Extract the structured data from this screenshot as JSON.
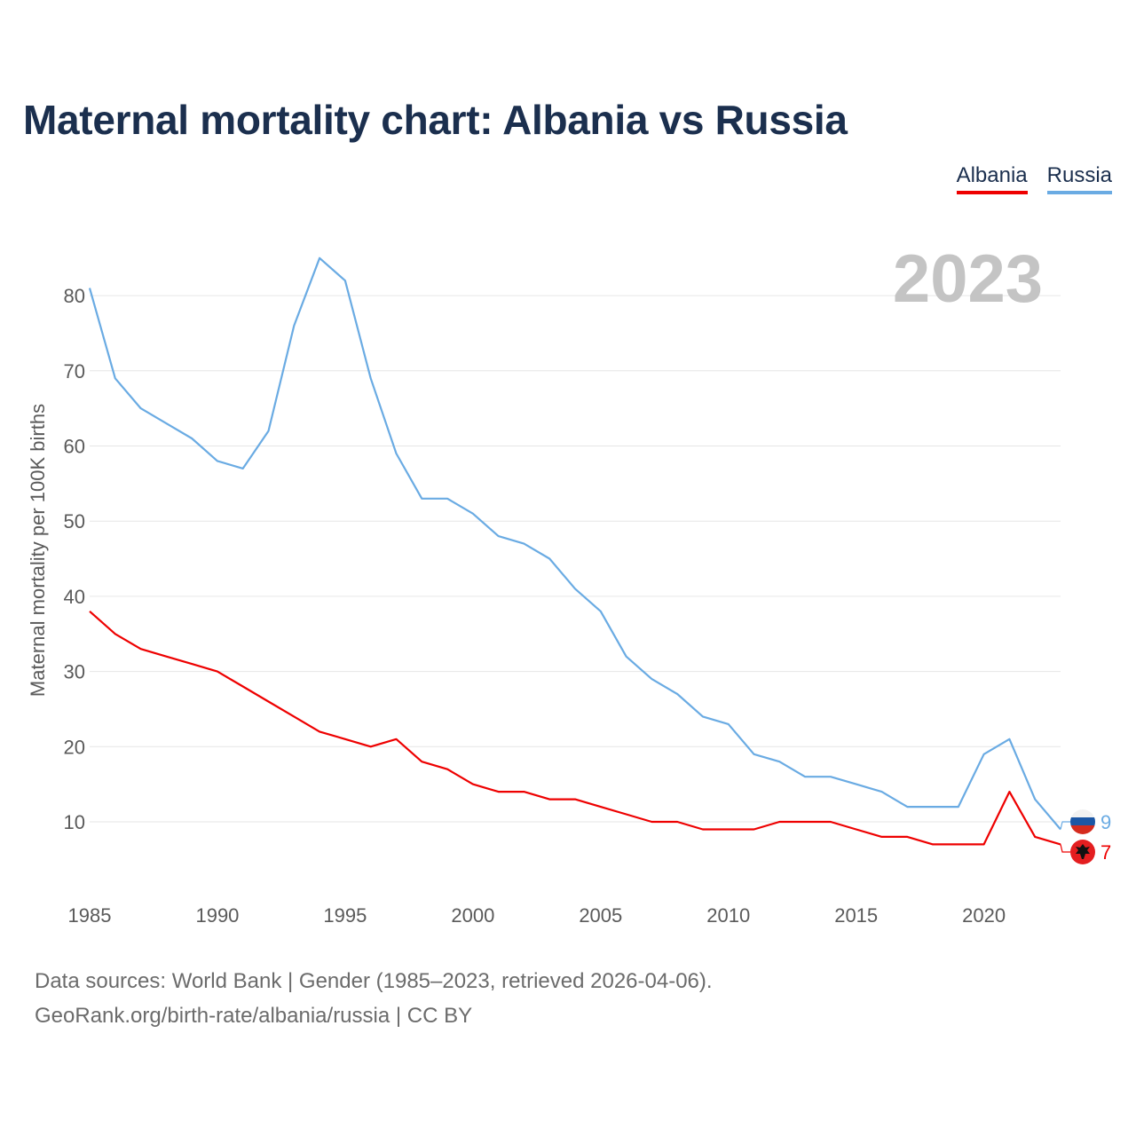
{
  "title": "Maternal mortality chart: Albania vs Russia",
  "legend": {
    "albania": "Albania",
    "russia": "Russia"
  },
  "footer": {
    "line1": "Data sources: World Bank | Gender (1985–2023, retrieved 2026-04-06).",
    "line2": "GeoRank.org/birth-rate/albania/russia | CC BY"
  },
  "colors": {
    "albania": "#ee0000",
    "russia": "#6aabe3",
    "title": "#1b2f4e",
    "grid": "#e6e6e6",
    "axis_text": "#5a5a5a",
    "year_watermark": "#c4c4c4"
  },
  "chart_data": {
    "type": "line",
    "title": "Maternal mortality chart: Albania vs Russia",
    "xlabel": "",
    "ylabel": "Maternal mortality per 100K births",
    "year_label": "2023",
    "xlim": [
      1985,
      2023
    ],
    "ylim": [
      0,
      90
    ],
    "x_ticks": [
      1985,
      1990,
      1995,
      2000,
      2005,
      2010,
      2015,
      2020
    ],
    "y_ticks": [
      10,
      20,
      30,
      40,
      50,
      60,
      70,
      80
    ],
    "grid": true,
    "legend_position": "top-right",
    "x": [
      1985,
      1986,
      1987,
      1988,
      1989,
      1990,
      1991,
      1992,
      1993,
      1994,
      1995,
      1996,
      1997,
      1998,
      1999,
      2000,
      2001,
      2002,
      2003,
      2004,
      2005,
      2006,
      2007,
      2008,
      2009,
      2010,
      2011,
      2012,
      2013,
      2014,
      2015,
      2016,
      2017,
      2018,
      2019,
      2020,
      2021,
      2022,
      2023
    ],
    "series": [
      {
        "name": "Albania",
        "color": "#ee0000",
        "values": [
          38,
          35,
          33,
          32,
          31,
          30,
          28,
          26,
          24,
          22,
          21,
          20,
          21,
          18,
          17,
          15,
          14,
          14,
          13,
          13,
          12,
          11,
          10,
          10,
          9,
          9,
          9,
          10,
          10,
          10,
          9,
          8,
          8,
          7,
          7,
          7,
          14,
          8,
          7
        ],
        "end_label": "7"
      },
      {
        "name": "Russia",
        "color": "#6aabe3",
        "values": [
          81,
          69,
          65,
          63,
          61,
          58,
          57,
          62,
          76,
          85,
          82,
          69,
          59,
          53,
          53,
          51,
          48,
          47,
          45,
          41,
          38,
          32,
          29,
          27,
          24,
          23,
          19,
          18,
          16,
          16,
          15,
          14,
          12,
          12,
          12,
          19,
          21,
          13,
          9
        ],
        "end_label": "9"
      }
    ]
  }
}
